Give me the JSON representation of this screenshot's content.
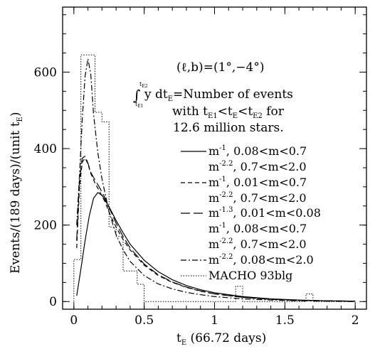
{
  "chart_data": {
    "type": "line",
    "xlabel": "t",
    "xlabel_sub": "E",
    "xlabel_rest": " (66.72 days)",
    "ylabel": "Events/(189 days)/(unit t",
    "ylabel_sub": "E",
    "ylabel_end": ")",
    "xlim": [
      -0.08,
      2.08
    ],
    "ylim": [
      -20,
      770
    ],
    "x_ticks": [
      0,
      0.5,
      1,
      1.5,
      2
    ],
    "x_tick_labels": [
      "0",
      "0.5",
      "1",
      "1.5",
      "2"
    ],
    "y_ticks": [
      0,
      200,
      400,
      600
    ],
    "y_tick_labels": [
      "0",
      "200",
      "400",
      "600"
    ],
    "annotation": {
      "line1": "(ℓ,b)=(1°,−4°)",
      "integral_sign": "∫",
      "integral_upper": "t",
      "integral_upper_sub": "E2",
      "integral_lower": "t",
      "integral_lower_sub": "E1",
      "line2_pre": "y dt",
      "line2_sub": "E",
      "line2_post": "=Number of events",
      "line3_pre": "with t",
      "line3_sub1": "E1",
      "line3_mid1": "<t",
      "line3_sub2": "E",
      "line3_mid2": "<t",
      "line3_sub3": "E2",
      "line3_post": " for",
      "line4": "12.6 million stars."
    },
    "legend_position": "right",
    "series": [
      {
        "name": "m⁻¹, 0.08<m<0.7 / m⁻²·², 0.7<m<2.0",
        "legend_lines": [
          "m⁻¹, 0.08<m<0.7",
          "m⁻²·², 0.7<m<2.0"
        ],
        "style": "solid",
        "x": [
          0.02,
          0.05,
          0.08,
          0.11,
          0.14,
          0.17,
          0.2,
          0.25,
          0.3,
          0.35,
          0.4,
          0.5,
          0.6,
          0.7,
          0.8,
          0.9,
          1.0,
          1.2,
          1.4,
          1.6,
          1.8,
          2.0
        ],
        "y": [
          15,
          85,
          160,
          225,
          270,
          285,
          278,
          248,
          212,
          180,
          150,
          108,
          78,
          57,
          42,
          31,
          23,
          13,
          7,
          4,
          2,
          1
        ]
      },
      {
        "name": "m⁻¹, 0.01<m<0.7 / m⁻²·², 0.7<m<2.0",
        "legend_lines": [
          "m⁻¹, 0.01<m<0.7",
          "m⁻²·², 0.7<m<2.0"
        ],
        "style": "dashed",
        "x": [
          0.02,
          0.04,
          0.06,
          0.08,
          0.1,
          0.12,
          0.15,
          0.18,
          0.22,
          0.26,
          0.3,
          0.35,
          0.4,
          0.5,
          0.6,
          0.7,
          0.8,
          0.9,
          1.0,
          1.2,
          1.4,
          1.6,
          1.8,
          2.0
        ],
        "y": [
          140,
          300,
          365,
          375,
          360,
          335,
          310,
          290,
          262,
          225,
          195,
          162,
          135,
          95,
          68,
          50,
          37,
          27,
          20,
          11,
          6,
          3,
          2,
          1
        ]
      },
      {
        "name": "m⁻¹·³, 0.01<m<0.08 / m⁻¹, 0.08<m<0.7 / m⁻²·², 0.7<m<2.0",
        "legend_lines": [
          "m⁻¹·³, 0.01<m<0.08",
          "m⁻¹, 0.08<m<0.7",
          "m⁻²·², 0.7<m<2.0"
        ],
        "style": "longdash",
        "x": [
          0.02,
          0.04,
          0.06,
          0.08,
          0.1,
          0.12,
          0.15,
          0.18,
          0.22,
          0.26,
          0.3,
          0.35,
          0.4,
          0.5,
          0.6,
          0.7,
          0.8,
          0.9,
          1.0,
          1.2,
          1.4,
          1.6,
          1.8,
          2.0
        ],
        "y": [
          160,
          320,
          375,
          380,
          362,
          338,
          318,
          300,
          272,
          238,
          205,
          170,
          140,
          98,
          70,
          51,
          38,
          28,
          20,
          11,
          6,
          3,
          2,
          1
        ]
      },
      {
        "name": "m⁻²·², 0.08<m<2.0",
        "legend_lines": [
          "m⁻²·², 0.08<m<2.0"
        ],
        "style": "dashdot",
        "x": [
          0.02,
          0.04,
          0.06,
          0.08,
          0.1,
          0.12,
          0.14,
          0.17,
          0.2,
          0.25,
          0.3,
          0.35,
          0.4,
          0.5,
          0.6,
          0.7,
          0.8,
          0.9,
          1.0,
          1.2,
          1.4,
          1.6,
          1.8,
          2.0
        ],
        "y": [
          200,
          330,
          480,
          590,
          635,
          595,
          490,
          390,
          320,
          235,
          175,
          135,
          105,
          68,
          46,
          33,
          24,
          18,
          13,
          7,
          4,
          2,
          1,
          0
        ]
      },
      {
        "name": "MACHO 93blg",
        "legend_lines": [
          "MACHO 93blg"
        ],
        "style": "dotted-histogram",
        "bin_edges": [
          0,
          0.05,
          0.1,
          0.15,
          0.2,
          0.25,
          0.3,
          0.35,
          0.4,
          0.45,
          0.5,
          1.1,
          1.15,
          1.2,
          1.6,
          1.65,
          1.7,
          2.0
        ],
        "values": [
          110,
          645,
          645,
          495,
          470,
          195,
          170,
          80,
          80,
          45,
          0,
          0,
          40,
          0,
          0,
          20,
          0
        ]
      }
    ],
    "legend_superscripts": {
      "m1": "-1",
      "m22": "-2.2",
      "m13": "-1.3"
    },
    "legend_text": {
      "l1": ", 0.08<m<0.7",
      "l2": ", 0.7<m<2.0",
      "l3": ", 0.01<m<0.7",
      "l4": ", 0.7<m<2.0",
      "l5": ", 0.01<m<0.08",
      "l6": ", 0.08<m<0.7",
      "l7": ", 0.7<m<2.0",
      "l8": ", 0.08<m<2.0",
      "l9": "MACHO 93blg",
      "base": "m"
    }
  }
}
